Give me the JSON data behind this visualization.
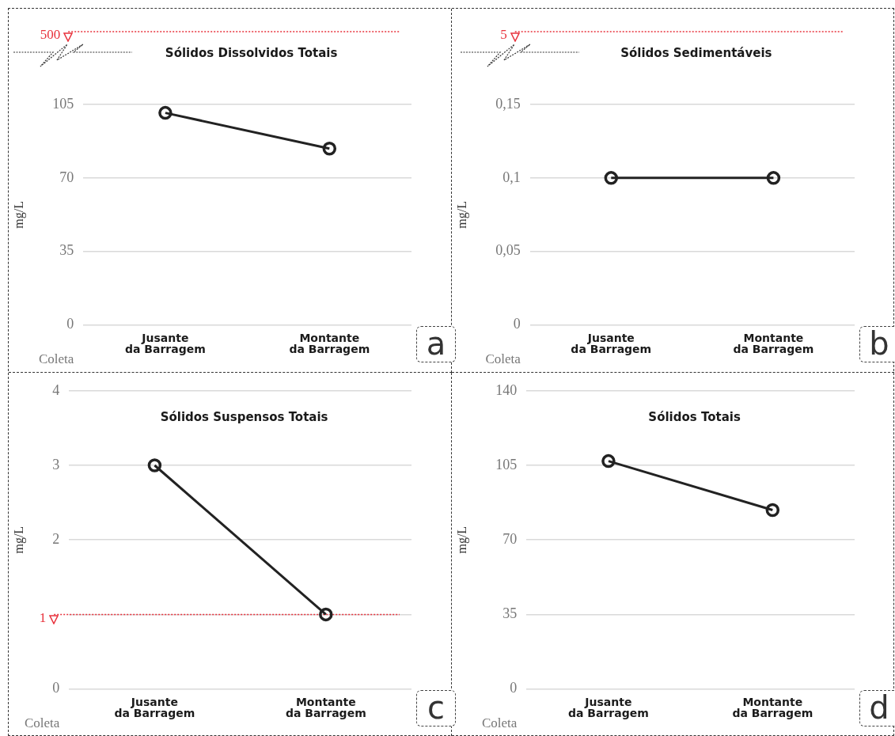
{
  "chart_data": [
    {
      "type": "line",
      "title": "Sólidos Dissolvidos Totais",
      "ylabel": "mg/L",
      "xlabel": "Coleta",
      "categories": [
        "Jusante da Barragem",
        "Montante da Barragem"
      ],
      "series": [
        {
          "color": "#222222",
          "values": [
            101,
            84
          ]
        }
      ],
      "ylim": [
        0,
        105
      ],
      "yticks": [
        0,
        35,
        70,
        105
      ],
      "grid": "y",
      "marker": "circle",
      "annotations": [
        "500",
        "a"
      ]
    },
    {
      "type": "line",
      "title": "Sólidos Sedimentáveis",
      "ylabel": "mg/L",
      "xlabel": "Coleta",
      "categories": [
        "Jusante da Barragem",
        "Montante da Barragem"
      ],
      "series": [
        {
          "color": "#222222",
          "values": [
            0.1,
            0.1
          ]
        }
      ],
      "ylim": [
        0,
        0.15
      ],
      "yticks": [
        0,
        {
          "value": 0.05,
          "label": "0,05"
        },
        {
          "value": 0.1,
          "label": "0,1"
        },
        {
          "value": 0.15,
          "label": "0,15"
        }
      ],
      "grid": "y",
      "marker": "circle",
      "annotations": [
        "5",
        "b"
      ]
    },
    {
      "type": "line",
      "title": "Sólidos Suspensos Totais",
      "ylabel": "mg/L",
      "xlabel": "Coleta",
      "categories": [
        "Jusante da Barragem",
        "Montante da Barragem"
      ],
      "series": [
        {
          "color": "#222222",
          "values": [
            3,
            1
          ]
        }
      ],
      "ylim": [
        0,
        4
      ],
      "yticks": [
        0,
        {
          "value": 1,
          "label": null
        },
        2,
        3,
        4
      ],
      "grid": "y",
      "marker": "circle",
      "ref_lines": [
        {
          "axis": "y",
          "value": 1,
          "label": "1",
          "color": "#e8323c",
          "line_style": "dotted"
        }
      ],
      "annotations": [
        "c"
      ]
    },
    {
      "type": "line",
      "title": "Sólidos Totais",
      "ylabel": "mg/L",
      "xlabel": "Coleta",
      "categories": [
        "Jusante da Barragem",
        "Montante da Barragem"
      ],
      "series": [
        {
          "color": "#222222",
          "values": [
            107,
            84
          ]
        }
      ],
      "ylim": [
        0,
        140
      ],
      "yticks": [
        0,
        35,
        70,
        105,
        140
      ],
      "grid": "y",
      "marker": "circle",
      "annotations": [
        "d"
      ]
    }
  ]
}
